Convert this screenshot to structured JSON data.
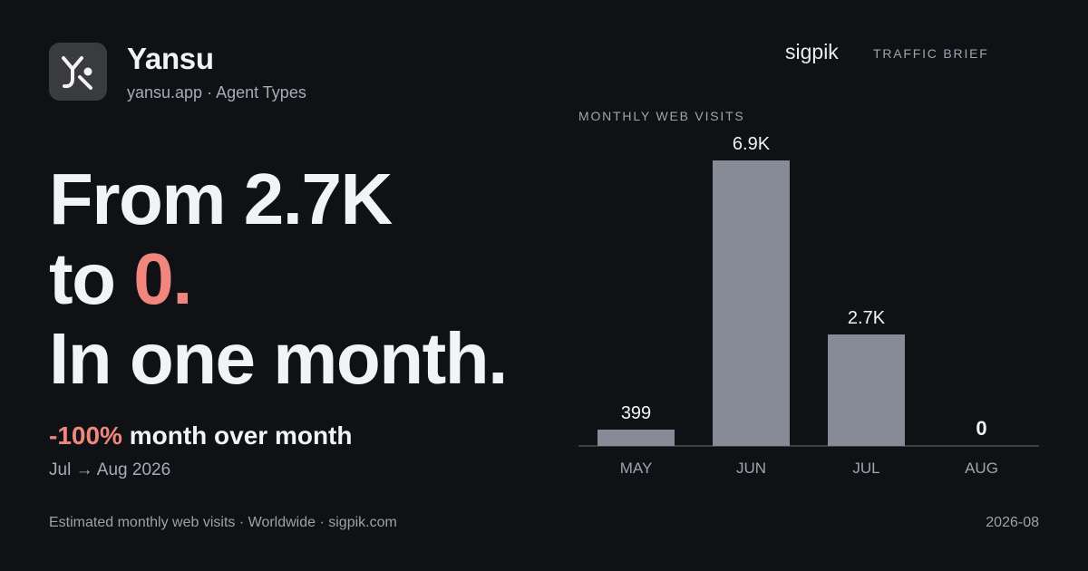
{
  "app": {
    "name": "Yansu",
    "domain": "yansu.app",
    "category": "Agent Types",
    "logo_icon": "yansu-logo-icon"
  },
  "brand": {
    "name": "sigpik",
    "tag": "TRAFFIC BRIEF"
  },
  "headline": {
    "line1": "From 2.7K",
    "line2_prefix": "to ",
    "line2_accent": "0.",
    "line3": "In one month."
  },
  "change": {
    "value": "-100%",
    "label": " month over month",
    "range": "Jul → Aug 2026"
  },
  "footer": {
    "left": "Estimated monthly web visits · Worldwide · sigpik.com",
    "right": "2026-08"
  },
  "colors": {
    "background": "#0f1115",
    "bar": "#878b97",
    "accent": "#f1867e",
    "text": "#f2f3f5",
    "muted": "#a0a4ac"
  },
  "chart_data": {
    "type": "bar",
    "title": "MONTHLY WEB VISITS",
    "categories": [
      "MAY",
      "JUN",
      "JUL",
      "AUG"
    ],
    "values": [
      399,
      6900,
      2700,
      0
    ],
    "value_labels": [
      "399",
      "6.9K",
      "2.7K",
      "0"
    ],
    "xlabel": "",
    "ylabel": "",
    "ylim": [
      0,
      6900
    ],
    "grid": false,
    "legend": "none"
  }
}
